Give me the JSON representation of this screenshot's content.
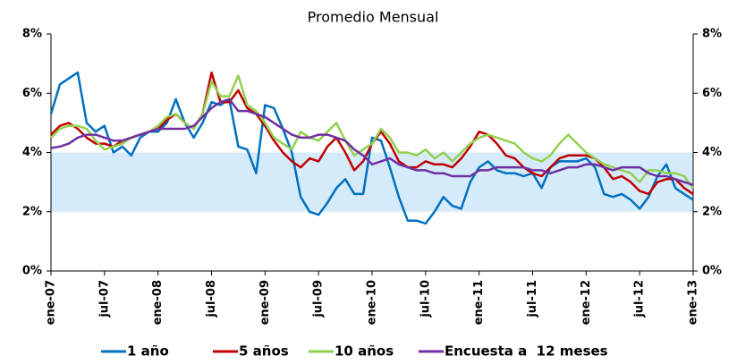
{
  "chart_data": {
    "type": "line",
    "title": "Promedio Mensual",
    "categories": [
      "ene-07",
      null,
      null,
      null,
      null,
      null,
      "jul-07",
      null,
      null,
      null,
      null,
      null,
      "ene-08",
      null,
      null,
      null,
      null,
      null,
      "jul-08",
      null,
      null,
      null,
      null,
      null,
      "ene-09",
      null,
      null,
      null,
      null,
      null,
      "jul-09",
      null,
      null,
      null,
      null,
      null,
      "ene-10",
      null,
      null,
      null,
      null,
      null,
      "jul-10",
      null,
      null,
      null,
      null,
      null,
      "ene-11",
      null,
      null,
      null,
      null,
      null,
      "jul-11",
      null,
      null,
      null,
      null,
      null,
      "ene-12",
      null,
      null,
      null,
      null,
      null,
      "jul-12",
      null,
      null,
      null,
      null,
      null,
      "ene-13"
    ],
    "series": [
      {
        "name": "1 año",
        "color": "#0070c0",
        "values": [
          5.3,
          6.3,
          6.5,
          6.7,
          5.0,
          4.7,
          4.9,
          4.0,
          4.2,
          3.9,
          4.5,
          4.7,
          4.7,
          5.0,
          5.8,
          5.0,
          4.5,
          5.0,
          5.7,
          5.6,
          5.8,
          4.2,
          4.1,
          3.3,
          5.6,
          5.5,
          4.8,
          4.0,
          2.5,
          2.0,
          1.9,
          2.3,
          2.8,
          3.1,
          2.6,
          2.6,
          4.5,
          4.4,
          3.5,
          2.5,
          1.7,
          1.7,
          1.6,
          2.0,
          2.5,
          2.2,
          2.1,
          3.0,
          3.5,
          3.7,
          3.4,
          3.3,
          3.3,
          3.2,
          3.3,
          2.8,
          3.5,
          3.7,
          3.7,
          3.7,
          3.8,
          3.5,
          2.6,
          2.5,
          2.6,
          2.4,
          2.1,
          2.5,
          3.2,
          3.6,
          2.8,
          2.6,
          2.4
        ]
      },
      {
        "name": "5 años",
        "color": "#c00000",
        "values": [
          4.6,
          4.9,
          5.0,
          4.8,
          4.5,
          4.3,
          4.3,
          4.2,
          4.4,
          4.5,
          4.6,
          4.7,
          4.8,
          5.1,
          5.3,
          5.0,
          4.8,
          5.3,
          6.7,
          5.7,
          5.7,
          6.1,
          5.5,
          5.3,
          4.9,
          4.4,
          4.0,
          3.7,
          3.5,
          3.8,
          3.7,
          4.2,
          4.5,
          4.0,
          3.4,
          3.7,
          4.3,
          4.7,
          4.3,
          3.7,
          3.5,
          3.5,
          3.7,
          3.6,
          3.6,
          3.5,
          3.8,
          4.2,
          4.7,
          4.6,
          4.3,
          3.9,
          3.8,
          3.5,
          3.3,
          3.2,
          3.5,
          3.8,
          3.9,
          3.9,
          3.9,
          3.8,
          3.5,
          3.1,
          3.2,
          3.0,
          2.7,
          2.6,
          3.0,
          3.1,
          3.1,
          2.8,
          2.6
        ]
      },
      {
        "name": "10 años",
        "color": "#92d050",
        "values": [
          4.5,
          4.8,
          4.9,
          4.9,
          4.8,
          4.4,
          4.1,
          4.2,
          4.3,
          4.5,
          4.6,
          4.7,
          4.9,
          5.2,
          5.3,
          5.0,
          4.8,
          5.3,
          6.4,
          5.9,
          5.9,
          6.6,
          5.6,
          5.4,
          5.0,
          4.5,
          4.3,
          4.1,
          4.7,
          4.5,
          4.4,
          4.7,
          5.0,
          4.4,
          3.9,
          4.1,
          4.3,
          4.8,
          4.5,
          4.0,
          4.0,
          3.9,
          4.1,
          3.8,
          4.0,
          3.7,
          4.0,
          4.3,
          4.5,
          4.6,
          4.5,
          4.4,
          4.3,
          4.0,
          3.8,
          3.7,
          3.9,
          4.3,
          4.6,
          4.3,
          4.0,
          3.8,
          3.6,
          3.5,
          3.4,
          3.3,
          3.0,
          3.4,
          3.4,
          3.3,
          3.3,
          3.2,
          2.8
        ]
      },
      {
        "name": "Encuesta a  12 meses",
        "color": "#7030a0",
        "values": [
          4.15,
          4.2,
          4.3,
          4.5,
          4.6,
          4.6,
          4.5,
          4.4,
          4.4,
          4.5,
          4.6,
          4.7,
          4.8,
          4.8,
          4.8,
          4.8,
          4.9,
          5.2,
          5.5,
          5.7,
          5.8,
          5.4,
          5.4,
          5.3,
          5.2,
          5.0,
          4.8,
          4.6,
          4.5,
          4.5,
          4.6,
          4.6,
          4.5,
          4.4,
          4.1,
          3.9,
          3.6,
          3.7,
          3.8,
          3.6,
          3.5,
          3.4,
          3.4,
          3.3,
          3.3,
          3.2,
          3.2,
          3.2,
          3.4,
          3.4,
          3.5,
          3.5,
          3.5,
          3.5,
          3.4,
          3.4,
          3.3,
          3.4,
          3.5,
          3.5,
          3.6,
          3.6,
          3.5,
          3.4,
          3.5,
          3.5,
          3.5,
          3.3,
          3.2,
          3.2,
          3.1,
          3.0,
          2.9
        ]
      }
    ],
    "ylim": [
      0,
      8
    ],
    "yticks": [
      {
        "value": 0,
        "label": "0%"
      },
      {
        "value": 2,
        "label": "2%"
      },
      {
        "value": 4,
        "label": "4%"
      },
      {
        "value": 6,
        "label": "6%"
      },
      {
        "value": 8,
        "label": "8%"
      }
    ],
    "y2lim": [
      0,
      8
    ],
    "y2ticks": [
      {
        "value": 0,
        "label": "0%"
      },
      {
        "value": 2,
        "label": "2%"
      },
      {
        "value": 4,
        "label": "4%"
      },
      {
        "value": 6,
        "label": "6%"
      },
      {
        "value": 8,
        "label": "8%"
      }
    ],
    "target_band": {
      "range": [
        2,
        4
      ],
      "color": "#d6ebfa"
    },
    "legend": "bottom"
  }
}
